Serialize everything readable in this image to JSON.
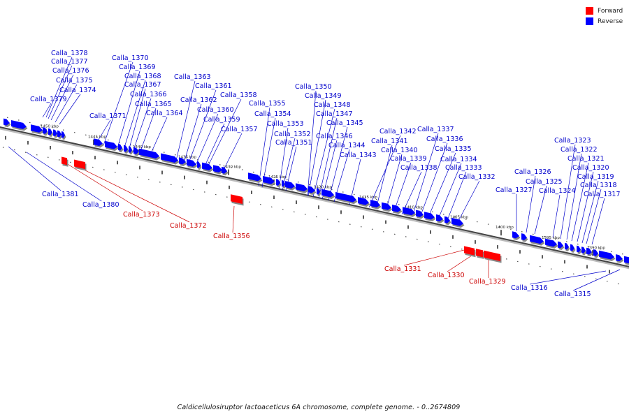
{
  "caption": "Caldicellulosiruptor lactoaceticus 6A chromosome, complete genome. - 0..2674809",
  "legend": [
    {
      "label": "Forward",
      "color": "#ff0000"
    },
    {
      "label": "Reverse",
      "color": "#0000ff"
    }
  ],
  "colors": {
    "forward": "#ff0000",
    "reverse": "#0000ff",
    "forward_label": "#cc0000",
    "reverse_label": "#0000cc",
    "axis": "#888888"
  },
  "axis_unit": "kbp",
  "ticks": [
    "1450 kbp",
    "1445 kbp",
    "1440 kbp",
    "1435 kbp",
    "1430 kbp",
    "1425 kbp",
    "1420 kbp",
    "1415 kbp",
    "1410 kbp",
    "1405 kbp",
    "1400 kbp",
    "1395 kbp",
    "1390 kbp"
  ],
  "genes_reverse": [
    "Calla_1378",
    "Calla_1377",
    "Calla_1376",
    "Calla_1375",
    "Calla_1374",
    "Calla_1379",
    "Calla_1370",
    "Calla_1369",
    "Calla_1368",
    "Calla_1367",
    "Calla_1366",
    "Calla_1365",
    "Calla_1364",
    "Calla_1371",
    "Calla_1363",
    "Calla_1361",
    "Calla_1362",
    "Calla_1358",
    "Calla_1360",
    "Calla_1359",
    "Calla_1357",
    "Calla_1355",
    "Calla_1354",
    "Calla_1353",
    "Calla_1352",
    "Calla_1351",
    "Calla_1350",
    "Calla_1349",
    "Calla_1348",
    "Calla_1347",
    "Calla_1345",
    "Calla_1346",
    "Calla_1344",
    "Calla_1343",
    "Calla_1342",
    "Calla_1341",
    "Calla_1340",
    "Calla_1339",
    "Calla_1338",
    "Calla_1337",
    "Calla_1336",
    "Calla_1335",
    "Calla_1334",
    "Calla_1333",
    "Calla_1332",
    "Calla_1326",
    "Calla_1327",
    "Calla_1325",
    "Calla_1324",
    "Calla_1323",
    "Calla_1322",
    "Calla_1321",
    "Calla_1320",
    "Calla_1319",
    "Calla_1318",
    "Calla_1317",
    "Calla_1381",
    "Calla_1380",
    "Calla_1316",
    "Calla_1315"
  ],
  "genes_forward": [
    "Calla_1373",
    "Calla_1372",
    "Calla_1356",
    "Calla_1331",
    "Calla_1330",
    "Calla_1329"
  ]
}
